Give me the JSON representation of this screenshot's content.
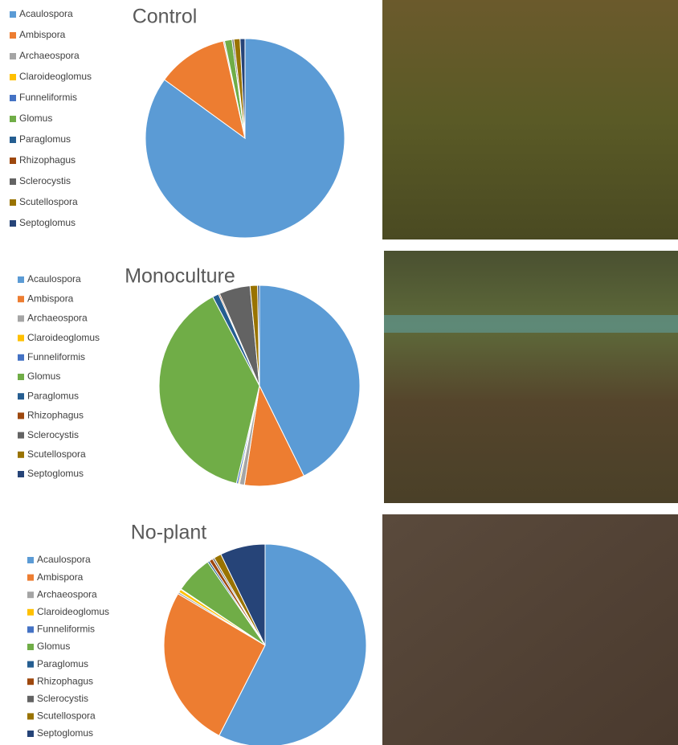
{
  "chart_data": [
    {
      "type": "pie",
      "title": "Control",
      "categories": [
        "Acaulospora",
        "Ambispora",
        "Archaeospora",
        "Claroideoglomus",
        "Funneliformis",
        "Glomus",
        "Paraglomus",
        "Rhizophagus",
        "Sclerocystis",
        "Scutellospora",
        "Septoglomus"
      ],
      "values": [
        85,
        11.5,
        0.2,
        0,
        0,
        1.2,
        0,
        0,
        0.3,
        1,
        0.8
      ],
      "colors": [
        "#5b9bd5",
        "#ed7d31",
        "#a5a5a5",
        "#ffc000",
        "#4472c4",
        "#70ad47",
        "#255e91",
        "#9e480e",
        "#636363",
        "#997300",
        "#264478"
      ]
    },
    {
      "type": "pie",
      "title": "Monoculture",
      "categories": [
        "Acaulospora",
        "Ambispora",
        "Archaeospora",
        "Claroideoglomus",
        "Funneliformis",
        "Glomus",
        "Paraglomus",
        "Rhizophagus",
        "Sclerocystis",
        "Scutellospora",
        "Septoglomus"
      ],
      "values": [
        42.7,
        9.7,
        0.8,
        0.2,
        0.3,
        38.6,
        1,
        0.2,
        5,
        1.2,
        0.3
      ],
      "colors": [
        "#5b9bd5",
        "#ed7d31",
        "#a5a5a5",
        "#ffc000",
        "#4472c4",
        "#70ad47",
        "#255e91",
        "#9e480e",
        "#636363",
        "#997300",
        "#264478"
      ]
    },
    {
      "type": "pie",
      "title": "No-plant",
      "categories": [
        "Acaulospora",
        "Ambispora",
        "Archaeospora",
        "Claroideoglomus",
        "Funneliformis",
        "Glomus",
        "Paraglomus",
        "Rhizophagus",
        "Sclerocystis",
        "Scutellospora",
        "Septoglomus"
      ],
      "values": [
        57.5,
        26,
        0.3,
        0.5,
        0.1,
        6,
        0.3,
        0.6,
        0.3,
        1.2,
        7.2
      ],
      "colors": [
        "#5b9bd5",
        "#ed7d31",
        "#a5a5a5",
        "#ffc000",
        "#4472c4",
        "#70ad47",
        "#255e91",
        "#9e480e",
        "#636363",
        "#997300",
        "#264478"
      ]
    }
  ]
}
